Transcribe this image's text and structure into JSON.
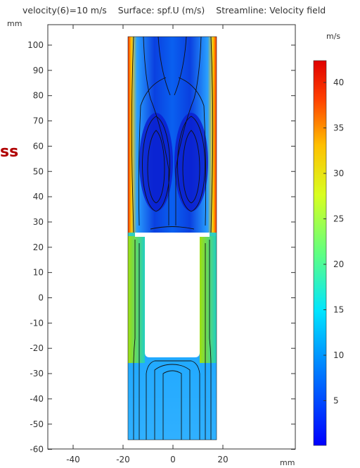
{
  "header": {
    "parameter": "velocity(6)=10 m/s",
    "surface": "Surface: spf.U (m/s)",
    "streamline": "Streamline: Velocity field"
  },
  "plot": {
    "y_unit": "mm",
    "x_unit": "mm",
    "y_ticks": [
      "100",
      "90",
      "80",
      "70",
      "60",
      "50",
      "40",
      "30",
      "20",
      "10",
      "0",
      "-10",
      "-20",
      "-30",
      "-40",
      "-50",
      "-60"
    ],
    "x_ticks": [
      "-40",
      "-20",
      "0",
      "20"
    ]
  },
  "colorbar": {
    "unit": "m/s",
    "ticks": [
      "40",
      "35",
      "30",
      "25",
      "20",
      "15",
      "10",
      "5"
    ]
  },
  "overlay_text": "ss",
  "colors": {
    "flow_bg": "#1a73e8",
    "obstacle": "#ffffff",
    "axis": "#333333"
  }
}
